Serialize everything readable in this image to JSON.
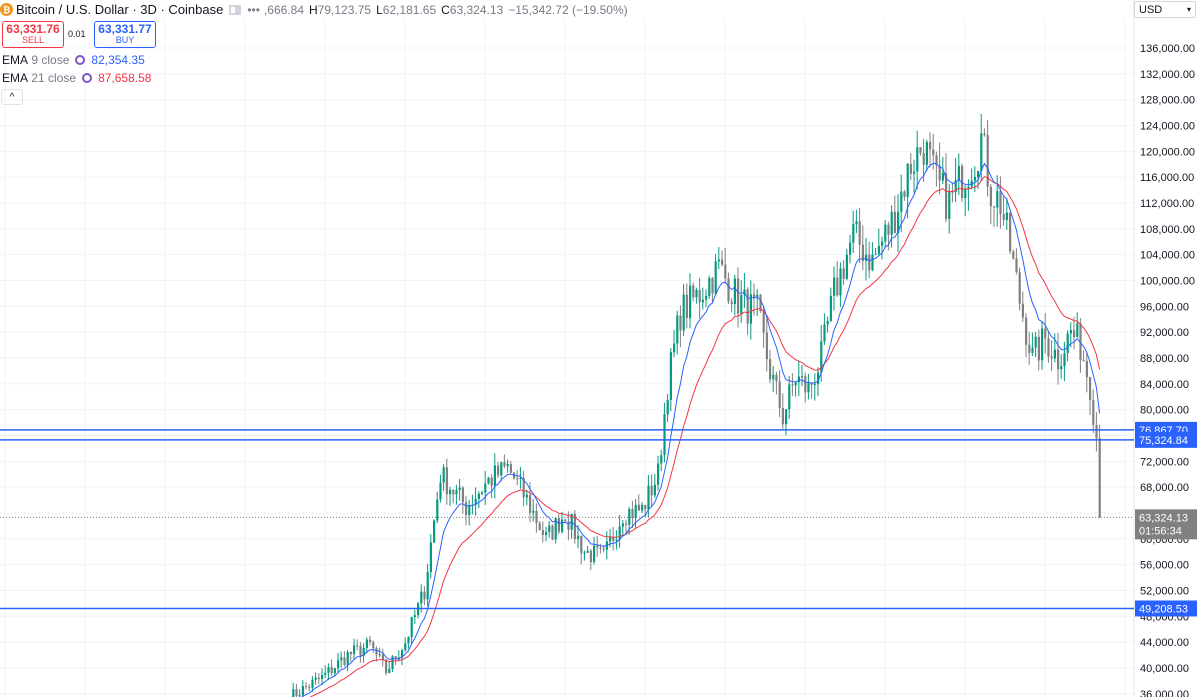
{
  "header": {
    "coin_icon": "bitcoin-icon",
    "title": "Bitcoin / U.S. Dollar · 3D · Coinbase",
    "open_value": ",666.84",
    "high_label": "H",
    "high_value": "79,123.75",
    "low_label": "L",
    "low_value": "62,181.65",
    "close_label": "C",
    "close_value": "63,324.13",
    "change": "−15,342.72 (−19.50%)"
  },
  "trade": {
    "sell_price": "63,331.76",
    "sell_label": "SELL",
    "spread": "0.01",
    "buy_price": "63,331.77",
    "buy_label": "BUY"
  },
  "indicators": [
    {
      "name": "EMA",
      "param": "9 close",
      "value": "82,354.35",
      "color": "#2962ff"
    },
    {
      "name": "EMA",
      "param": "21 close",
      "value": "87,658.58",
      "color": "#f23645"
    }
  ],
  "currency": "USD",
  "colors": {
    "up": "#089981",
    "down": "#808080",
    "ema9": "#2962ff",
    "ema21": "#f23645",
    "hline": "#2962ff"
  },
  "chart_data": {
    "type": "candlestick",
    "ylim": [
      35500,
      140500
    ],
    "y_ticks": [
      36000,
      40000,
      44000,
      48000,
      52000,
      56000,
      60000,
      64000,
      68000,
      72000,
      76000,
      80000,
      84000,
      88000,
      92000,
      96000,
      100000,
      104000,
      108000,
      112000,
      116000,
      120000,
      124000,
      128000,
      132000,
      136000
    ],
    "y_tick_labels": [
      "36,000.00",
      "40,000.00",
      "44,000.00",
      "48,000.00",
      "52,000.00",
      "56,000.00",
      "60,000.00",
      "64,000.00",
      "68,000.00",
      "72,000.00",
      "76,000.00",
      "80,000.00",
      "84,000.00",
      "88,000.00",
      "92,000.00",
      "96,000.00",
      "100,000.00",
      "104,000.00",
      "108,000.00",
      "112,000.00",
      "116,000.00",
      "120,000.00",
      "124,000.00",
      "128,000.00",
      "132,000.00",
      "136,000.00"
    ],
    "horizontal_lines": [
      {
        "value": 76867.7,
        "label": "76,867.70"
      },
      {
        "value": 75324.84,
        "label": "75,324.84"
      },
      {
        "value": 49208.53,
        "label": "49,208.53"
      }
    ],
    "last_price": {
      "value": 63324.13,
      "label": "63,324.13",
      "countdown": "01:56:34"
    },
    "approx_close_path": [
      [
        0,
        35500
      ],
      [
        10,
        38500
      ],
      [
        18,
        42000
      ],
      [
        25,
        43500
      ],
      [
        30,
        39500
      ],
      [
        36,
        44000
      ],
      [
        42,
        52000
      ],
      [
        47,
        70000
      ],
      [
        55,
        65000
      ],
      [
        62,
        69000
      ],
      [
        68,
        71000
      ],
      [
        74,
        66000
      ],
      [
        80,
        60000
      ],
      [
        86,
        64000
      ],
      [
        92,
        58000
      ],
      [
        98,
        57000
      ],
      [
        104,
        64000
      ],
      [
        110,
        64500
      ],
      [
        115,
        70000
      ],
      [
        118,
        84000
      ],
      [
        122,
        95000
      ],
      [
        128,
        98000
      ],
      [
        134,
        102000
      ],
      [
        140,
        97000
      ],
      [
        146,
        95000
      ],
      [
        150,
        86000
      ],
      [
        154,
        79000
      ],
      [
        158,
        85000
      ],
      [
        162,
        83000
      ],
      [
        166,
        88000
      ],
      [
        170,
        98000
      ],
      [
        176,
        107000
      ],
      [
        182,
        103000
      ],
      [
        188,
        109000
      ],
      [
        194,
        118000
      ],
      [
        198,
        121000
      ],
      [
        202,
        115000
      ],
      [
        206,
        112000
      ],
      [
        210,
        116000
      ],
      [
        214,
        119000
      ],
      [
        216,
        122000
      ],
      [
        219,
        114000
      ],
      [
        222,
        112000
      ],
      [
        225,
        105000
      ],
      [
        228,
        97000
      ],
      [
        232,
        88000
      ],
      [
        236,
        91000
      ],
      [
        240,
        88000
      ],
      [
        244,
        92000
      ],
      [
        247,
        90000
      ],
      [
        250,
        84000
      ],
      [
        252,
        76000
      ],
      [
        253,
        63324
      ]
    ]
  }
}
